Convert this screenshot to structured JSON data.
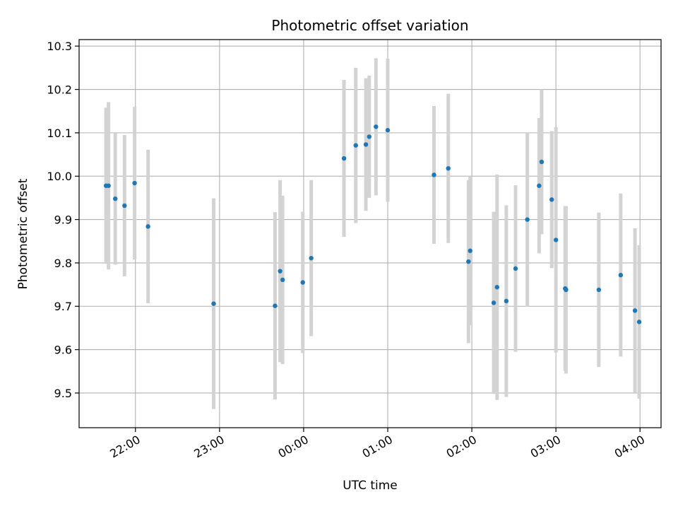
{
  "chart_data": {
    "type": "scatter",
    "title": "Photometric offset variation",
    "xlabel": "UTC time",
    "ylabel": "Photometric offset",
    "grid": true,
    "x_unit": "UTC time (hours past midnight; values after midnight exceed 24)",
    "xlim": [
      21.33,
      28.25
    ],
    "ylim": [
      9.42,
      10.315
    ],
    "x_ticks": [
      {
        "value": 22,
        "label": "22:00"
      },
      {
        "value": 23,
        "label": "23:00"
      },
      {
        "value": 24,
        "label": "00:00"
      },
      {
        "value": 25,
        "label": "01:00"
      },
      {
        "value": 26,
        "label": "02:00"
      },
      {
        "value": 27,
        "label": "03:00"
      },
      {
        "value": 28,
        "label": "04:00"
      }
    ],
    "y_ticks": [
      {
        "value": 9.5,
        "label": "9.5"
      },
      {
        "value": 9.6,
        "label": "9.6"
      },
      {
        "value": 9.7,
        "label": "9.7"
      },
      {
        "value": 9.8,
        "label": "9.8"
      },
      {
        "value": 9.9,
        "label": "9.9"
      },
      {
        "value": 10.0,
        "label": "10.0"
      },
      {
        "value": 10.1,
        "label": "10.1"
      },
      {
        "value": 10.2,
        "label": "10.2"
      },
      {
        "value": 10.3,
        "label": "10.3"
      }
    ],
    "colors": {
      "point": "#1f77b4",
      "errorbar": "#d3d3d3",
      "grid": "#b0b0b0"
    },
    "points": [
      {
        "x": 21.65,
        "y": 9.978,
        "err": 0.18
      },
      {
        "x": 21.68,
        "y": 9.978,
        "err": 0.193
      },
      {
        "x": 21.76,
        "y": 9.948,
        "err": 0.152
      },
      {
        "x": 21.87,
        "y": 9.932,
        "err": 0.163
      },
      {
        "x": 21.99,
        "y": 9.984,
        "err": 0.176
      },
      {
        "x": 22.15,
        "y": 9.884,
        "err": 0.177
      },
      {
        "x": 22.93,
        "y": 9.706,
        "err": 0.243
      },
      {
        "x": 23.66,
        "y": 9.701,
        "err": 0.216
      },
      {
        "x": 23.72,
        "y": 9.781,
        "err": 0.21
      },
      {
        "x": 23.75,
        "y": 9.761,
        "err": 0.194
      },
      {
        "x": 23.99,
        "y": 9.755,
        "err": 0.163
      },
      {
        "x": 24.09,
        "y": 9.811,
        "err": 0.18
      },
      {
        "x": 24.48,
        "y": 10.041,
        "err": 0.181
      },
      {
        "x": 24.62,
        "y": 10.071,
        "err": 0.179
      },
      {
        "x": 24.74,
        "y": 10.073,
        "err": 0.153
      },
      {
        "x": 24.78,
        "y": 10.091,
        "err": 0.141
      },
      {
        "x": 24.86,
        "y": 10.114,
        "err": 0.158
      },
      {
        "x": 25.0,
        "y": 10.106,
        "err": 0.165
      },
      {
        "x": 25.55,
        "y": 10.003,
        "err": 0.159
      },
      {
        "x": 25.72,
        "y": 10.018,
        "err": 0.172
      },
      {
        "x": 25.96,
        "y": 9.803,
        "err": 0.188
      },
      {
        "x": 25.98,
        "y": 9.828,
        "err": 0.172
      },
      {
        "x": 26.26,
        "y": 9.708,
        "err": 0.21
      },
      {
        "x": 26.3,
        "y": 9.744,
        "err": 0.26
      },
      {
        "x": 26.41,
        "y": 9.712,
        "err": 0.221
      },
      {
        "x": 26.52,
        "y": 9.787,
        "err": 0.192
      },
      {
        "x": 26.66,
        "y": 9.9,
        "err": 0.201
      },
      {
        "x": 26.8,
        "y": 9.978,
        "err": 0.156
      },
      {
        "x": 26.83,
        "y": 10.033,
        "err": 0.167
      },
      {
        "x": 26.95,
        "y": 9.946,
        "err": 0.158
      },
      {
        "x": 27.0,
        "y": 9.853,
        "err": 0.26
      },
      {
        "x": 27.11,
        "y": 9.741,
        "err": 0.19
      },
      {
        "x": 27.12,
        "y": 9.738,
        "err": 0.193
      },
      {
        "x": 27.51,
        "y": 9.738,
        "err": 0.178
      },
      {
        "x": 27.77,
        "y": 9.772,
        "err": 0.188
      },
      {
        "x": 27.94,
        "y": 9.69,
        "err": 0.19
      },
      {
        "x": 27.99,
        "y": 9.664,
        "err": 0.177
      }
    ]
  }
}
